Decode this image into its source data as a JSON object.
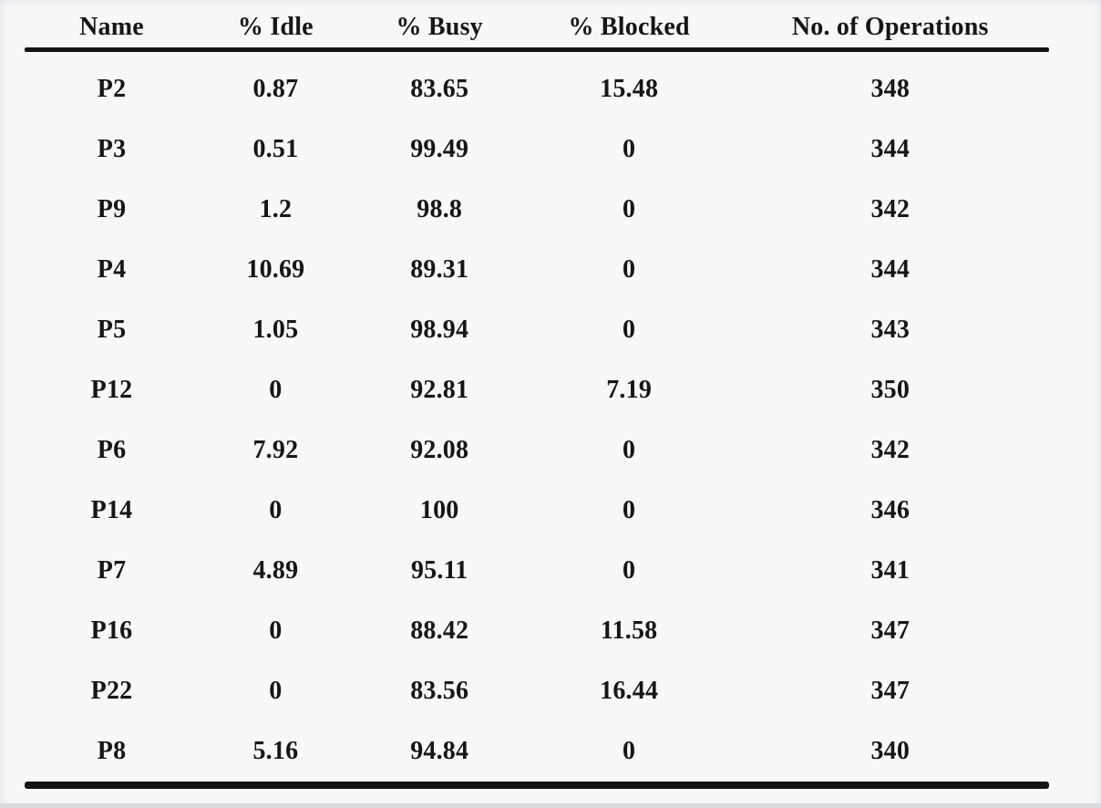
{
  "page": {
    "background_color": "#f7f8fa",
    "rule_color": "#141414",
    "text_color": "#161616"
  },
  "table": {
    "columns": [
      "Name",
      "% Idle",
      "% Busy",
      "% Blocked",
      "No. of Operations"
    ],
    "rows": [
      [
        "P2",
        "0.87",
        "83.65",
        "15.48",
        "348"
      ],
      [
        "P3",
        "0.51",
        "99.49",
        "0",
        "344"
      ],
      [
        "P9",
        "1.2",
        "98.8",
        "0",
        "342"
      ],
      [
        "P4",
        "10.69",
        "89.31",
        "0",
        "344"
      ],
      [
        "P5",
        "1.05",
        "98.94",
        "0",
        "343"
      ],
      [
        "P12",
        "0",
        "92.81",
        "7.19",
        "350"
      ],
      [
        "P6",
        "7.92",
        "92.08",
        "0",
        "342"
      ],
      [
        "P14",
        "0",
        "100",
        "0",
        "346"
      ],
      [
        "P7",
        "4.89",
        "95.11",
        "0",
        "341"
      ],
      [
        "P16",
        "0",
        "88.42",
        "11.58",
        "347"
      ],
      [
        "P22",
        "0",
        "83.56",
        "16.44",
        "347"
      ],
      [
        "P8",
        "5.16",
        "94.84",
        "0",
        "340"
      ]
    ]
  }
}
